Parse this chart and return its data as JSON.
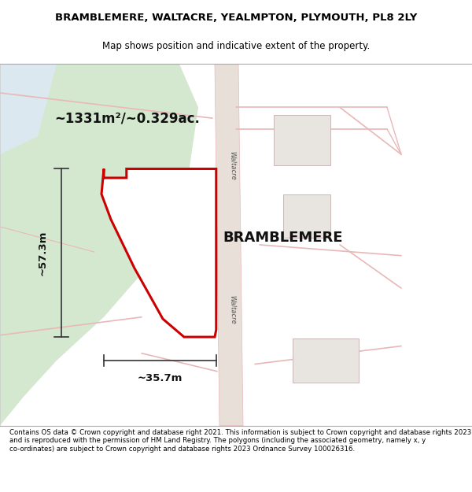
{
  "title_line1": "BRAMBLEMERE, WALTACRE, YEALMPTON, PLYMOUTH, PL8 2LY",
  "title_line2": "Map shows position and indicative extent of the property.",
  "property_label": "BRAMBLEMERE",
  "area_label": "~1331m²/~0.329ac.",
  "dim_height": "~57.3m",
  "dim_width": "~35.7m",
  "footer_text": "Contains OS data © Crown copyright and database right 2021. This information is subject to Crown copyright and database rights 2023 and is reproduced with the permission of HM Land Registry. The polygons (including the associated geometry, namely x, y co-ordinates) are subject to Crown copyright and database rights 2023 Ordnance Survey 100026316.",
  "bg_color": "#f5f0eb",
  "map_bg": "#ffffff",
  "green_patch_color": "#d4e8d0",
  "road_color": "#e8b8b8",
  "road_center_color": "#ccaaaa",
  "property_outline_color": "#cc0000",
  "property_fill_color": "#ffffff",
  "dim_line_color": "#333333",
  "title_bg": "#ffffff",
  "footer_bg": "#ffffff"
}
